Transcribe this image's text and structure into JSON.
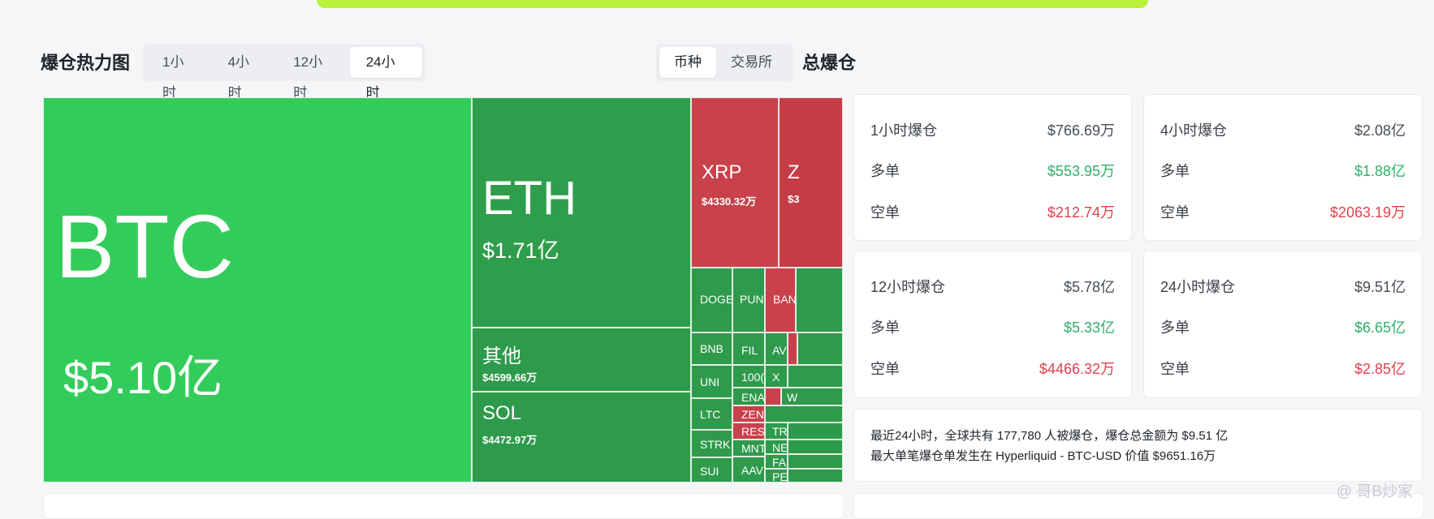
{
  "heatmap": {
    "title": "爆仓热力图",
    "time_tabs": [
      "1小时",
      "4小时",
      "12小时",
      "24小时"
    ],
    "active_time_tab": "24小时",
    "group_tabs": [
      "币种",
      "交易所"
    ],
    "active_group_tab": "币种",
    "tiles": {
      "btc": {
        "symbol": "BTC",
        "value": "$5.10亿"
      },
      "eth": {
        "symbol": "ETH",
        "value": "$1.71亿"
      },
      "other": {
        "symbol": "其他",
        "value": "$4599.66万"
      },
      "sol": {
        "symbol": "SOL",
        "value": "$4472.97万"
      },
      "xrp": {
        "symbol": "XRP",
        "value": "$4330.32万"
      },
      "z": {
        "symbol": "Z",
        "value": "$3"
      },
      "doge": "DOGE",
      "pump": "PUN",
      "ban": "BAN",
      "bnb": "BNB",
      "fil": "FIL",
      "av": "AV",
      "uni": "UNI",
      "k1000": "100(",
      "x": "X",
      "ena": "ENA",
      "ltc": "LTC",
      "zen": "ZEN",
      "w": "W",
      "res": "RES",
      "tr": "TR",
      "strk": "STRK",
      "mnt": "MNT",
      "ne": "NE",
      "fa": "FA",
      "sui": "SUI",
      "aav": "AAV",
      "pe": "PE"
    }
  },
  "total": {
    "title": "总爆仓",
    "cards": [
      {
        "label": "1小时爆仓",
        "total": "$766.69万",
        "long_label": "多单",
        "long": "$553.95万",
        "short_label": "空单",
        "short": "$212.74万"
      },
      {
        "label": "4小时爆仓",
        "total": "$2.08亿",
        "long_label": "多单",
        "long": "$1.88亿",
        "short_label": "空单",
        "short": "$2063.19万"
      },
      {
        "label": "12小时爆仓",
        "total": "$5.78亿",
        "long_label": "多单",
        "long": "$5.33亿",
        "short_label": "空单",
        "short": "$4466.32万"
      },
      {
        "label": "24小时爆仓",
        "total": "$9.51亿",
        "long_label": "多单",
        "long": "$6.65亿",
        "short_label": "空单",
        "short": "$2.85亿"
      }
    ],
    "summary_line1": "最近24小时，全球共有 177,780 人被爆仓，爆仓总金额为 $9.51 亿",
    "summary_line2": "最大单笔爆仓单发生在 Hyperliquid - BTC-USD 价值 $9651.16万"
  },
  "watermark": "@ 哥B炒家",
  "colors": {
    "long": "#2eb06a",
    "short": "#e0424b",
    "accent": "#b8f23a"
  }
}
